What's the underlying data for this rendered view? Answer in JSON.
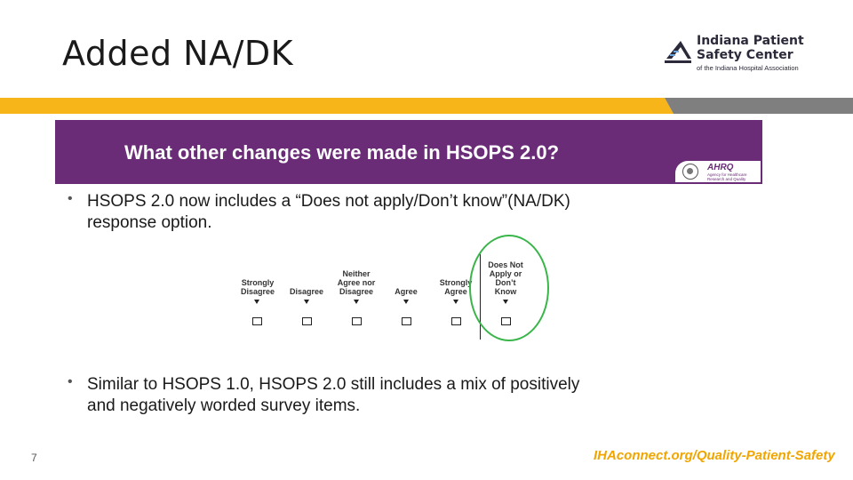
{
  "slide": {
    "title": "Added NA/DK",
    "page_number": "7",
    "footer_url": "IHAconnect.org/Quality-Patient-Safety"
  },
  "logo": {
    "line1": "Indiana Patient",
    "line2": "Safety Center",
    "line3": "of the Indiana Hospital Association"
  },
  "panel": {
    "heading": "What other changes were made in HSOPS 2.0?",
    "badge_name": "AHRQ",
    "badge_sub": "Agency for Healthcare Research and Quality"
  },
  "bullets": [
    {
      "line1": "HSOPS 2.0 now includes a “Does not apply/Don’t know”(NA/DK)",
      "line2": "response option."
    },
    {
      "line1": "Similar to HSOPS 1.0, HSOPS 2.0 still includes a mix of positively",
      "line2": "and negatively worded survey items."
    }
  ],
  "scale": {
    "options": [
      {
        "line1": "Strongly",
        "line2": "Disagree"
      },
      {
        "line1": "Disagree"
      },
      {
        "line1": "Neither",
        "line2": "Agree nor",
        "line3": "Disagree"
      },
      {
        "line1": "Agree"
      },
      {
        "line1": "Strongly",
        "line2": "Agree"
      },
      {
        "line1": "Does Not",
        "line2": "Apply or",
        "line3": "Don’t",
        "line4": "Know"
      }
    ]
  },
  "colors": {
    "header_purple": "#6a2c77",
    "accent_gold": "#f7b519",
    "accent_gray": "#7f7f7f",
    "highlight_green": "#3ab54a",
    "footer_gold": "#f0a500"
  }
}
